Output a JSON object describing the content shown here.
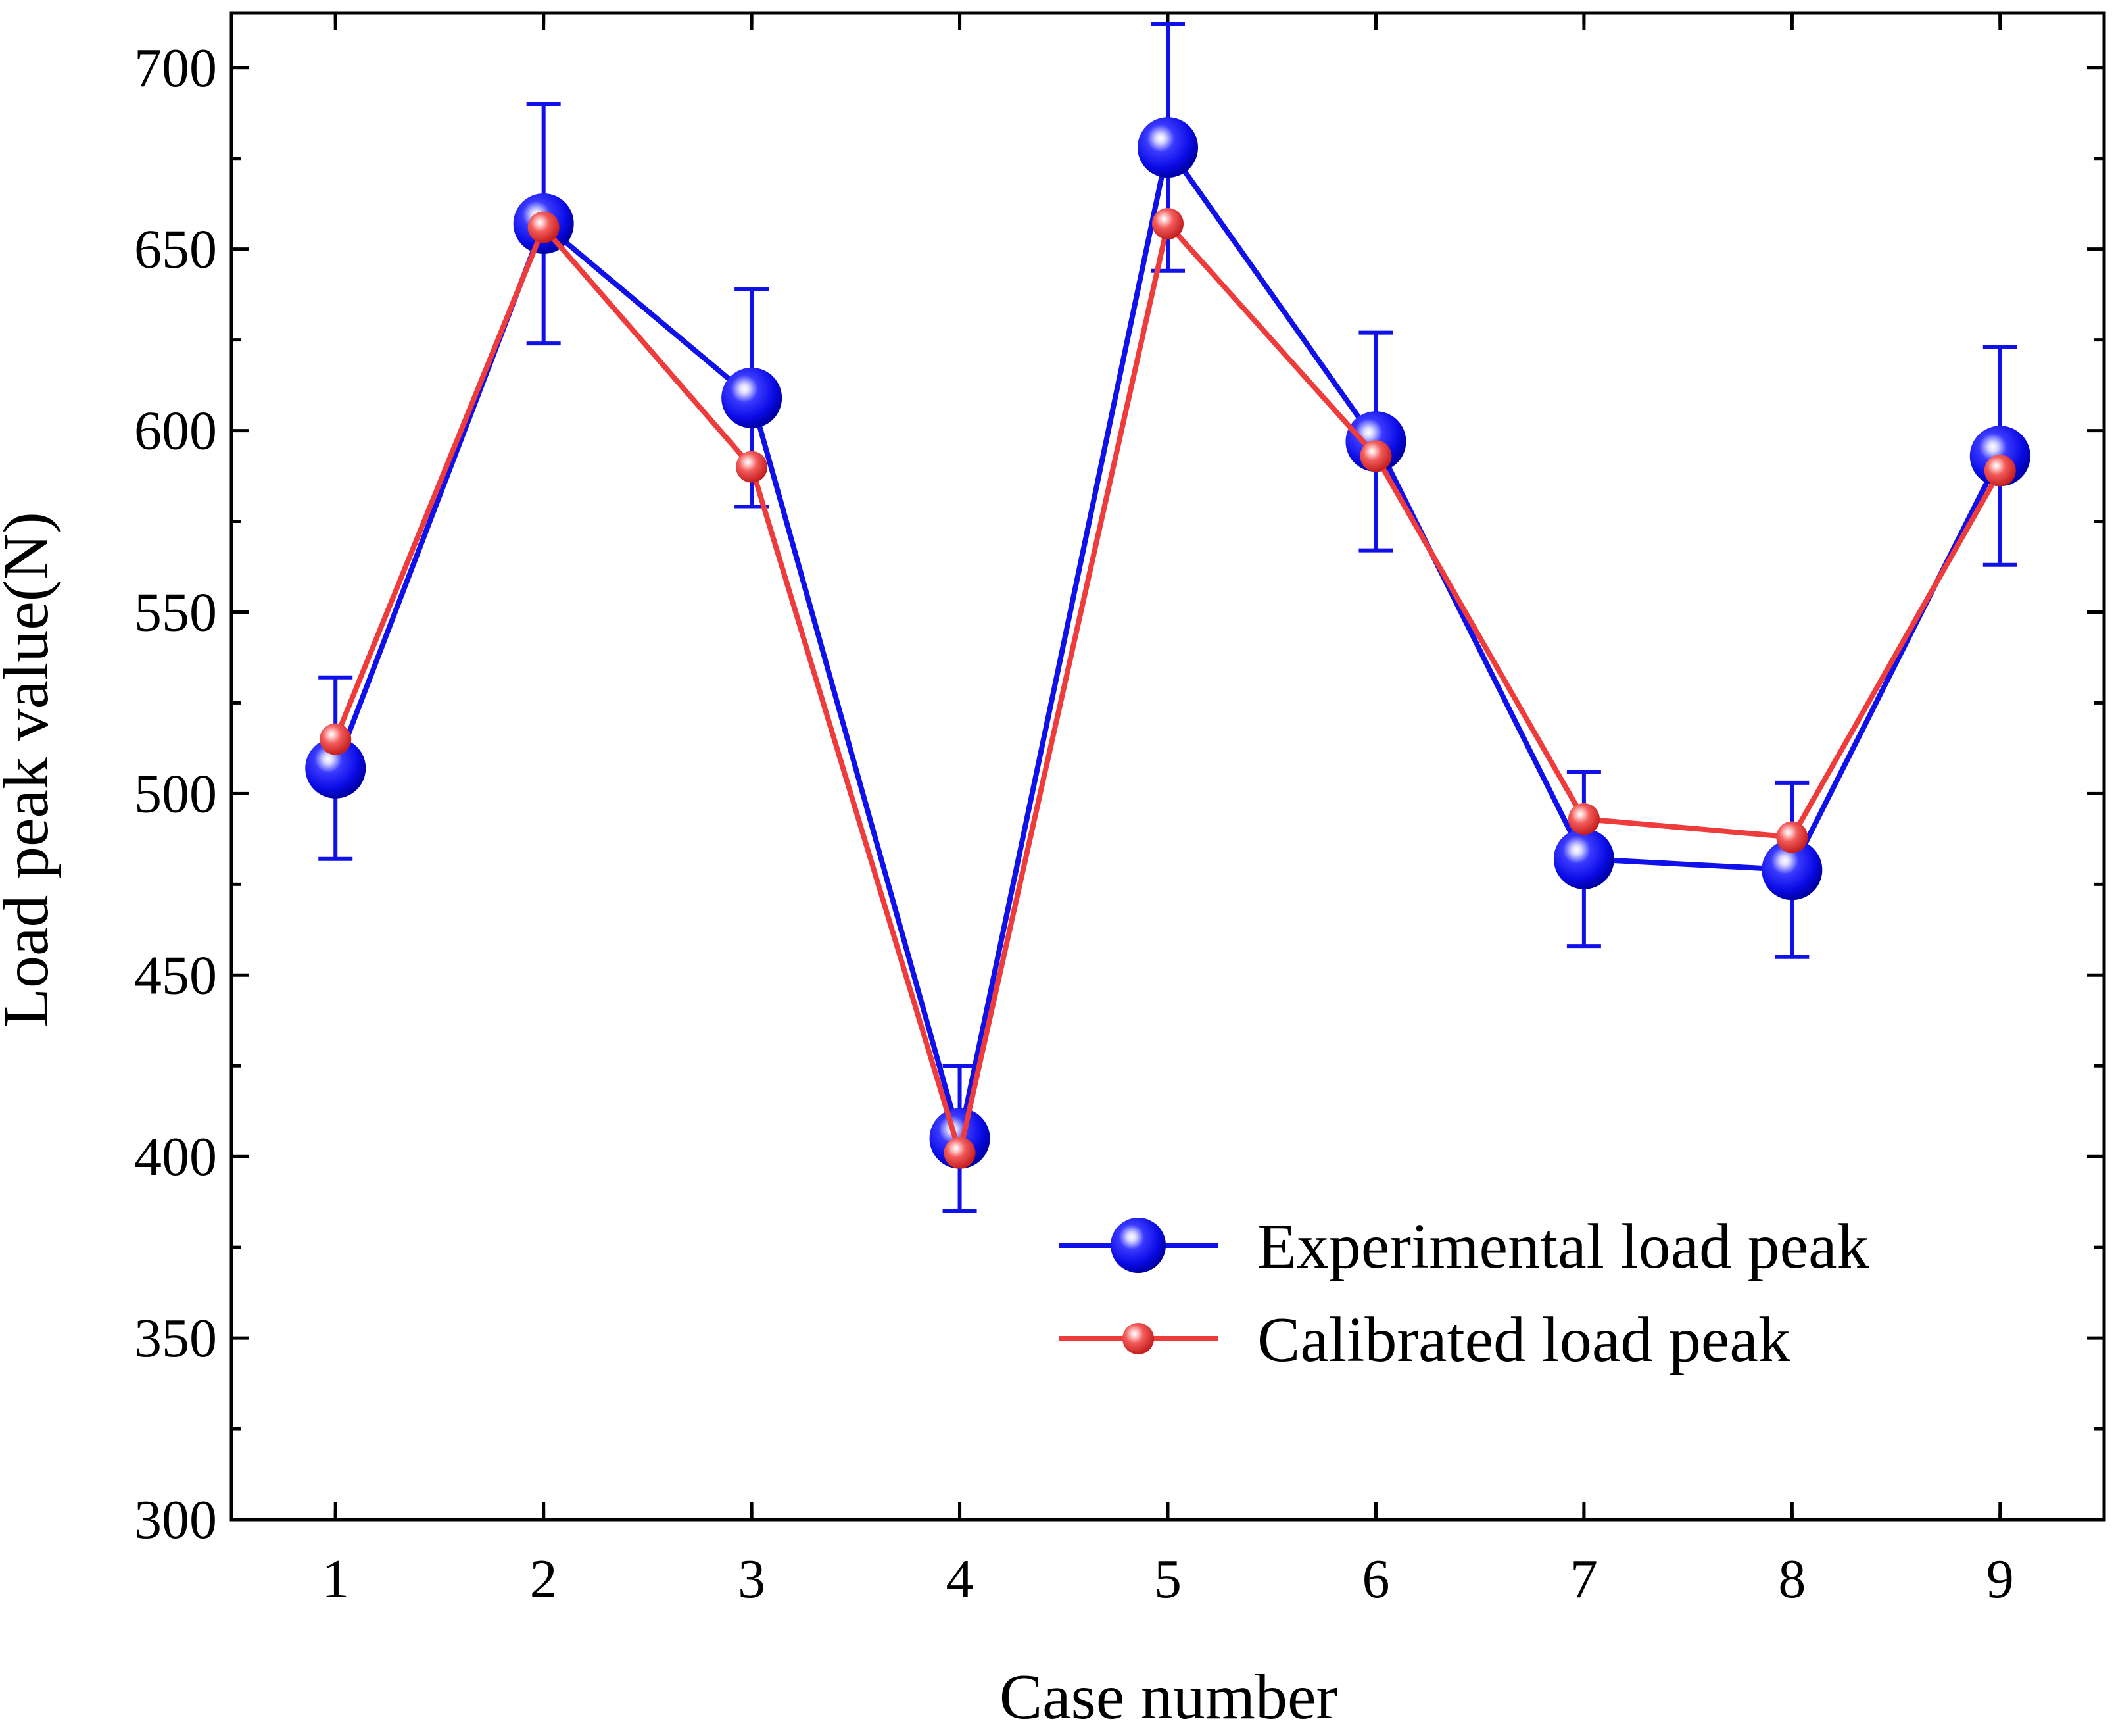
{
  "chart_data": {
    "type": "line",
    "xlabel": "Case number",
    "ylabel": "Load peak value(N)",
    "x": [
      1,
      2,
      3,
      4,
      5,
      6,
      7,
      8,
      9
    ],
    "x_ticks": [
      "1",
      "2",
      "3",
      "4",
      "5",
      "6",
      "7",
      "8",
      "9"
    ],
    "xlim": [
      0.5,
      9.5
    ],
    "ylim": [
      300,
      715
    ],
    "y_ticks": [
      "300",
      "350",
      "400",
      "450",
      "500",
      "550",
      "600",
      "650",
      "700"
    ],
    "grid": false,
    "legend_position": "bottom-right",
    "series": [
      {
        "name": "Experimental load peak",
        "color": "#1010E8",
        "marker": "large-sphere",
        "values": [
          507,
          657,
          609,
          405,
          678,
          597,
          482,
          479,
          593
        ],
        "error": [
          25,
          33,
          30,
          20,
          34,
          30,
          24,
          24,
          30
        ]
      },
      {
        "name": "Calibrated load peak",
        "color": "#EE3B3B",
        "marker": "small-sphere",
        "values": [
          515,
          656,
          590,
          401,
          657,
          593,
          493,
          488,
          589
        ]
      }
    ]
  }
}
